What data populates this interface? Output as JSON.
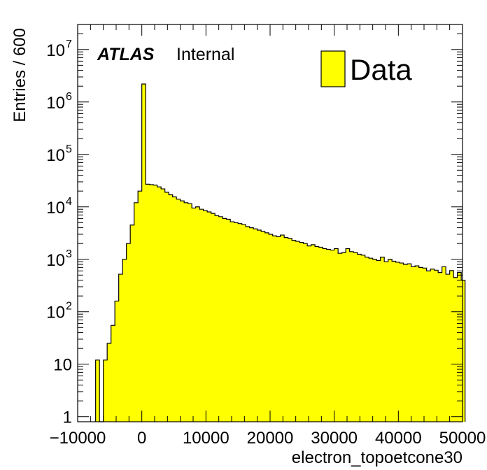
{
  "chart_data": {
    "type": "bar",
    "title": "",
    "xlabel": "electron_topoetcone30",
    "ylabel": "Entries / 600",
    "xlim": [
      -10000,
      50000
    ],
    "ylim": [
      0.8,
      30000000
    ],
    "yscale": "log",
    "bin_width": 600,
    "x_ticks": [
      -10000,
      0,
      10000,
      20000,
      30000,
      40000,
      50000
    ],
    "x_tick_labels": [
      "−10000",
      "0",
      "10000",
      "20000",
      "30000",
      "40000",
      "50000"
    ],
    "y_ticks": [
      1,
      10,
      100,
      1000,
      10000,
      100000,
      1000000,
      10000000
    ],
    "y_tick_labels": [
      {
        "base": "1",
        "exp": ""
      },
      {
        "base": "10",
        "exp": ""
      },
      {
        "base": "10",
        "exp": "2"
      },
      {
        "base": "10",
        "exp": "3"
      },
      {
        "base": "10",
        "exp": "4"
      },
      {
        "base": "10",
        "exp": "5"
      },
      {
        "base": "10",
        "exp": "6"
      },
      {
        "base": "10",
        "exp": "7"
      }
    ],
    "fill_color": "#ffff00",
    "line_color": "#000000",
    "legend": {
      "entries": [
        "Data"
      ],
      "position": "top-right"
    },
    "annotations": {
      "experiment": "ATLAS",
      "status": "Internal"
    },
    "series": [
      {
        "name": "Data",
        "bin_low_edges": [
          -7200,
          -6600,
          -6000,
          -5400,
          -4800,
          -4200,
          -3600,
          -3000,
          -2400,
          -1800,
          -1200,
          -600,
          0,
          600,
          1200,
          1800,
          2400,
          3000,
          3600,
          4200,
          4800,
          5400,
          6000,
          6600,
          7200,
          7800,
          8400,
          9000,
          9600,
          10200,
          10800,
          11400,
          12000,
          12600,
          13200,
          13800,
          14400,
          15000,
          15600,
          16200,
          16800,
          17400,
          18000,
          18600,
          19200,
          19800,
          20400,
          21000,
          21600,
          22200,
          22800,
          23400,
          24000,
          24600,
          25200,
          25800,
          26400,
          27000,
          27600,
          28200,
          28800,
          29400,
          30000,
          30600,
          31200,
          31800,
          32400,
          33000,
          33600,
          34200,
          34800,
          35400,
          36000,
          36600,
          37200,
          37800,
          38400,
          39000,
          39600,
          40200,
          40800,
          41400,
          42000,
          42600,
          43200,
          43800,
          44400,
          45000,
          45600,
          46200,
          46800,
          47400,
          48000,
          48600,
          49200,
          49800
        ],
        "values": [
          12,
          0,
          12,
          25,
          55,
          160,
          520,
          1000,
          2000,
          4500,
          12000,
          20000,
          2200000,
          27000,
          26500,
          26000,
          24000,
          22000,
          19000,
          17000,
          15500,
          14000,
          13000,
          12000,
          11500,
          9500,
          10000,
          9000,
          8500,
          8000,
          7500,
          6800,
          6500,
          6000,
          5800,
          5200,
          5000,
          4800,
          4600,
          4200,
          4000,
          3800,
          3600,
          3400,
          3200,
          3000,
          2800,
          2700,
          2900,
          2600,
          2500,
          2300,
          2200,
          2100,
          2000,
          1800,
          1900,
          1750,
          1700,
          1600,
          1550,
          1500,
          1600,
          1300,
          1350,
          1600,
          1400,
          1350,
          1250,
          1200,
          1100,
          1050,
          1000,
          950,
          1100,
          900,
          1000,
          920,
          880,
          850,
          800,
          820,
          720,
          750,
          700,
          680,
          600,
          650,
          620,
          560,
          720,
          520,
          610,
          450,
          560,
          400
        ]
      }
    ]
  }
}
